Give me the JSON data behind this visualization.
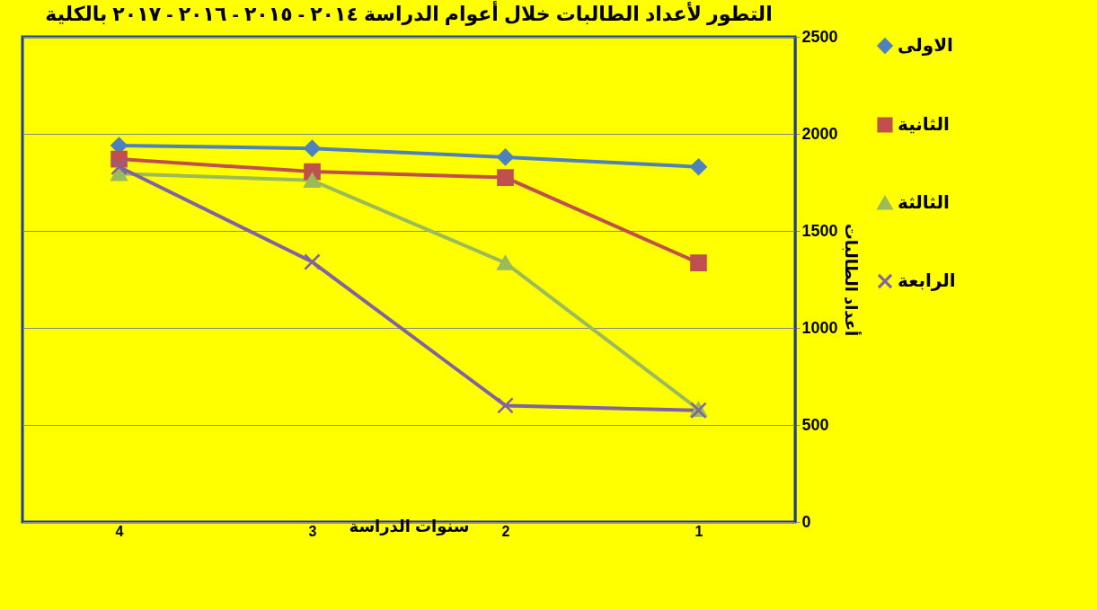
{
  "chart_data": {
    "type": "line",
    "title": "التطور لأعداد الطالبات خلال أعوام الدراسة ٢٠١٤ - ٢٠١٥ - ٢٠١٦ - ٢٠١٧ بالكلية",
    "xlabel": "سنوات الدراسة",
    "ylabel": "أعداد الطالبات",
    "categories": [
      "4",
      "3",
      "2",
      "1"
    ],
    "series": [
      {
        "name": "الاولى",
        "color": "#4f81bd",
        "marker": "diamond",
        "values": [
          1940,
          1925,
          1880,
          1830
        ]
      },
      {
        "name": "الثانية",
        "color": "#c0504d",
        "marker": "square",
        "values": [
          1870,
          1805,
          1775,
          1335
        ]
      },
      {
        "name": "الثالثة",
        "color": "#9bbb59",
        "marker": "triangle",
        "values": [
          1795,
          1760,
          1335,
          580
        ]
      },
      {
        "name": "الرابعة",
        "color": "#8064a2",
        "marker": "cross",
        "values": [
          1830,
          1340,
          600,
          575
        ]
      }
    ],
    "ylim": [
      0,
      2500
    ],
    "yticks": [
      0,
      500,
      1000,
      1500,
      2000,
      2500
    ],
    "grid": "y",
    "legend": "right"
  }
}
